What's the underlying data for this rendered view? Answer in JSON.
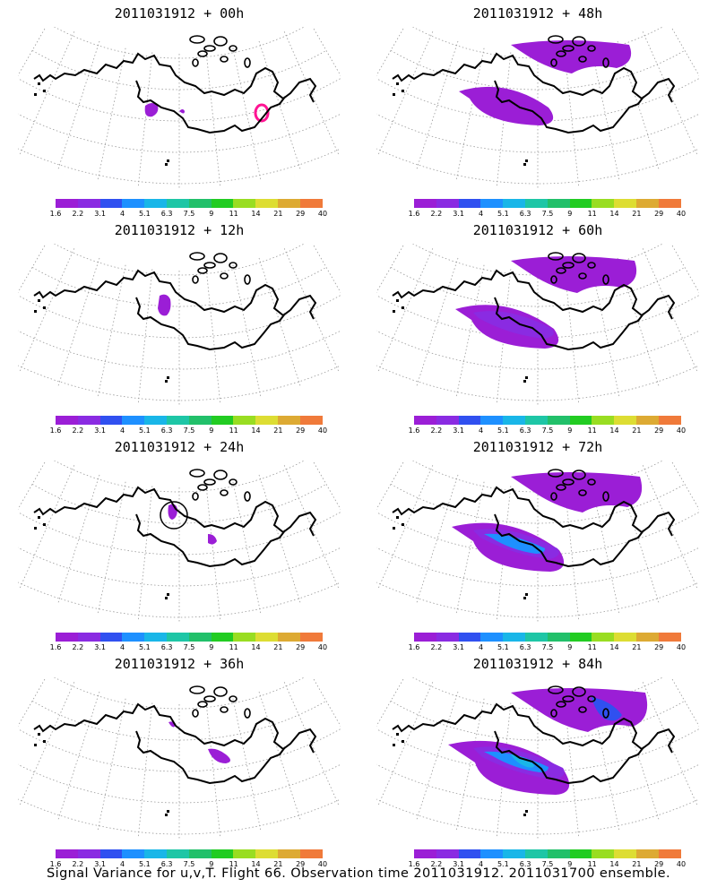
{
  "panels": [
    {
      "title": "2011031912 + 00h",
      "lead": "00h",
      "col": 0,
      "row": 0,
      "intensity": 0
    },
    {
      "title": "2011031912 + 12h",
      "lead": "12h",
      "col": 0,
      "row": 1,
      "intensity": 1
    },
    {
      "title": "2011031912 + 24h",
      "lead": "24h",
      "col": 0,
      "row": 2,
      "intensity": 1
    },
    {
      "title": "2011031912 + 36h",
      "lead": "36h",
      "col": 0,
      "row": 3,
      "intensity": 1
    },
    {
      "title": "2011031912 + 48h",
      "lead": "48h",
      "col": 1,
      "row": 0,
      "intensity": 2
    },
    {
      "title": "2011031912 + 60h",
      "lead": "60h",
      "col": 1,
      "row": 1,
      "intensity": 3
    },
    {
      "title": "2011031912 + 72h",
      "lead": "72h",
      "col": 1,
      "row": 2,
      "intensity": 4
    },
    {
      "title": "2011031912 + 84h",
      "lead": "84h",
      "col": 1,
      "row": 3,
      "intensity": 5
    }
  ],
  "colorbar": {
    "labels": [
      "1.6",
      "2.2",
      "3.1",
      "4",
      "5.1",
      "6.3",
      "7.5",
      "9",
      "11",
      "14",
      "21",
      "29",
      "40"
    ],
    "colors": [
      "#9b1ed6",
      "#8a2be2",
      "#3050f0",
      "#1e90ff",
      "#19b6e8",
      "#1ec6a6",
      "#22c06a",
      "#22cc22",
      "#99dd22",
      "#dddd33",
      "#ddaa33",
      "#f07a3a",
      "#f04060",
      "#ff1493"
    ]
  },
  "caption": "Signal Variance for u,v,T. Flight 66. Observation time 2011031912. 2011031700 ensemble."
}
